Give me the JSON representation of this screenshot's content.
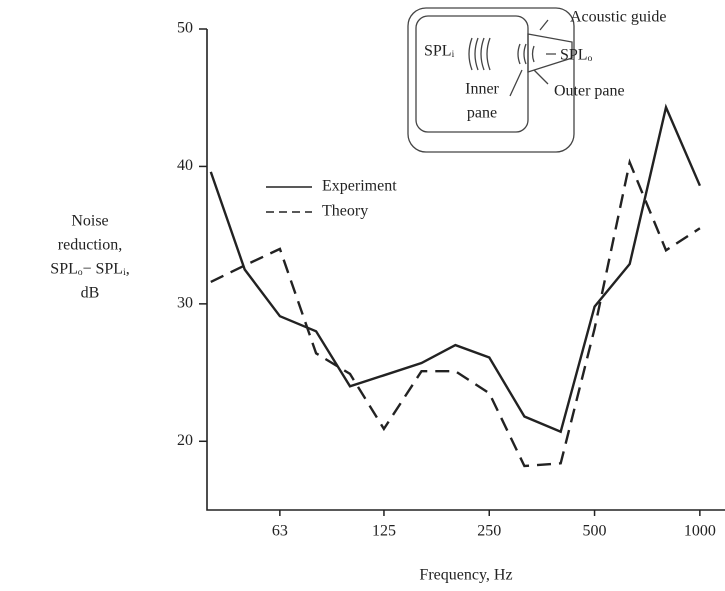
{
  "chart_data": {
    "type": "line",
    "x_label": "Frequency, Hz",
    "y_label": [
      "Noise",
      "reduction,",
      "SPLₒ− SPLᵢ,",
      "dB"
    ],
    "x": [
      40,
      50,
      63,
      80,
      100,
      125,
      160,
      200,
      250,
      315,
      400,
      500,
      630,
      800,
      1000
    ],
    "series": [
      {
        "name": "Experiment",
        "color": "#222222",
        "dash": "solid",
        "values": [
          39.6,
          32.5,
          29.1,
          28,
          24,
          24.8,
          25.7,
          27,
          26.1,
          21.8,
          20.7,
          29.8,
          32.9,
          44.3,
          38.6
        ]
      },
      {
        "name": "Theory",
        "color": "#222222",
        "dash": "dashed",
        "values": [
          31.6,
          32.8,
          34,
          26.4,
          24.9,
          20.9,
          25.1,
          25.1,
          23.5,
          18.2,
          18.4,
          28.2,
          40.3,
          33.9,
          35.5
        ]
      }
    ],
    "xscale": "log",
    "xlim": [
      39,
      1180
    ],
    "xticks": [
      63,
      125,
      250,
      500,
      1000
    ],
    "ylim": [
      15,
      50
    ],
    "yticks": [
      20,
      30,
      40,
      50
    ],
    "annotations": {
      "guide": "Acoustic guide",
      "spl_i": "SPLᵢ",
      "spl_o": "SPLₒ",
      "inner": [
        "Inner",
        "pane"
      ],
      "outer": "Outer pane"
    }
  }
}
